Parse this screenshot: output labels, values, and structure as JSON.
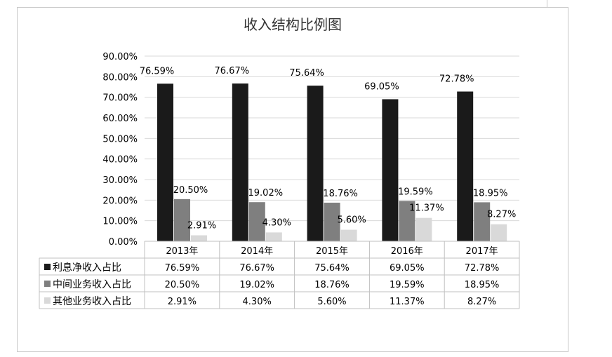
{
  "chart_data": {
    "type": "bar",
    "title": "收入结构比例图",
    "categories": [
      "2013年",
      "2014年",
      "2015年",
      "2016年",
      "2017年"
    ],
    "series": [
      {
        "name": "利息净收入占比",
        "values": [
          76.59,
          76.67,
          75.64,
          69.05,
          72.78
        ],
        "labels": [
          "76.59%",
          "76.67%",
          "75.64%",
          "69.05%",
          "72.78%"
        ]
      },
      {
        "name": "中间业务收入占比",
        "values": [
          20.5,
          19.02,
          18.76,
          19.59,
          18.95
        ],
        "labels": [
          "20.50%",
          "19.02%",
          "18.76%",
          "19.59%",
          "18.95%"
        ]
      },
      {
        "name": "其他业务收入占比",
        "values": [
          2.91,
          4.3,
          5.6,
          11.37,
          8.27
        ],
        "labels": [
          "2.91%",
          "4.30%",
          "5.60%",
          "11.37%",
          "8.27%"
        ]
      }
    ],
    "colors": [
      "#1a1a1a",
      "#7f7f7f",
      "#d9d9d9"
    ],
    "ylim": [
      0,
      90
    ],
    "ytick_step": 10,
    "yticks": [
      "0.00%",
      "10.00%",
      "20.00%",
      "30.00%",
      "40.00%",
      "50.00%",
      "60.00%",
      "70.00%",
      "80.00%",
      "90.00%"
    ],
    "grid": true,
    "legend": "data-table"
  }
}
